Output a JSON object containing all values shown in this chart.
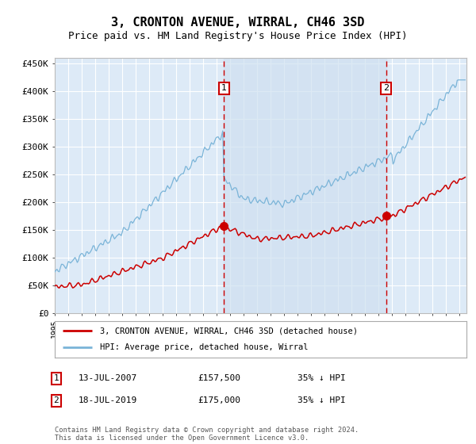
{
  "title": "3, CRONTON AVENUE, WIRRAL, CH46 3SD",
  "subtitle": "Price paid vs. HM Land Registry's House Price Index (HPI)",
  "title_fontsize": 11,
  "subtitle_fontsize": 9,
  "ylabel_ticks": [
    "£0",
    "£50K",
    "£100K",
    "£150K",
    "£200K",
    "£250K",
    "£300K",
    "£350K",
    "£400K",
    "£450K"
  ],
  "ytick_values": [
    0,
    50000,
    100000,
    150000,
    200000,
    250000,
    300000,
    350000,
    400000,
    450000
  ],
  "ylim": [
    0,
    460000
  ],
  "xlim_start": 1995.0,
  "xlim_end": 2025.5,
  "background_color": "#ffffff",
  "plot_bg_color": "#ddeaf7",
  "grid_color": "#c8d4e0",
  "hpi_color": "#7ab4d8",
  "price_color": "#cc0000",
  "marker1_date": 2007.54,
  "marker1_price": 157500,
  "marker2_date": 2019.54,
  "marker2_price": 175000,
  "legend_line1": "3, CRONTON AVENUE, WIRRAL, CH46 3SD (detached house)",
  "legend_line2": "HPI: Average price, detached house, Wirral",
  "table_row1": [
    "1",
    "13-JUL-2007",
    "£157,500",
    "35% ↓ HPI"
  ],
  "table_row2": [
    "2",
    "18-JUL-2019",
    "£175,000",
    "35% ↓ HPI"
  ],
  "footer": "Contains HM Land Registry data © Crown copyright and database right 2024.\nThis data is licensed under the Open Government Licence v3.0.",
  "box_color": "#cc0000",
  "shaded_color": "#cfe0f0"
}
